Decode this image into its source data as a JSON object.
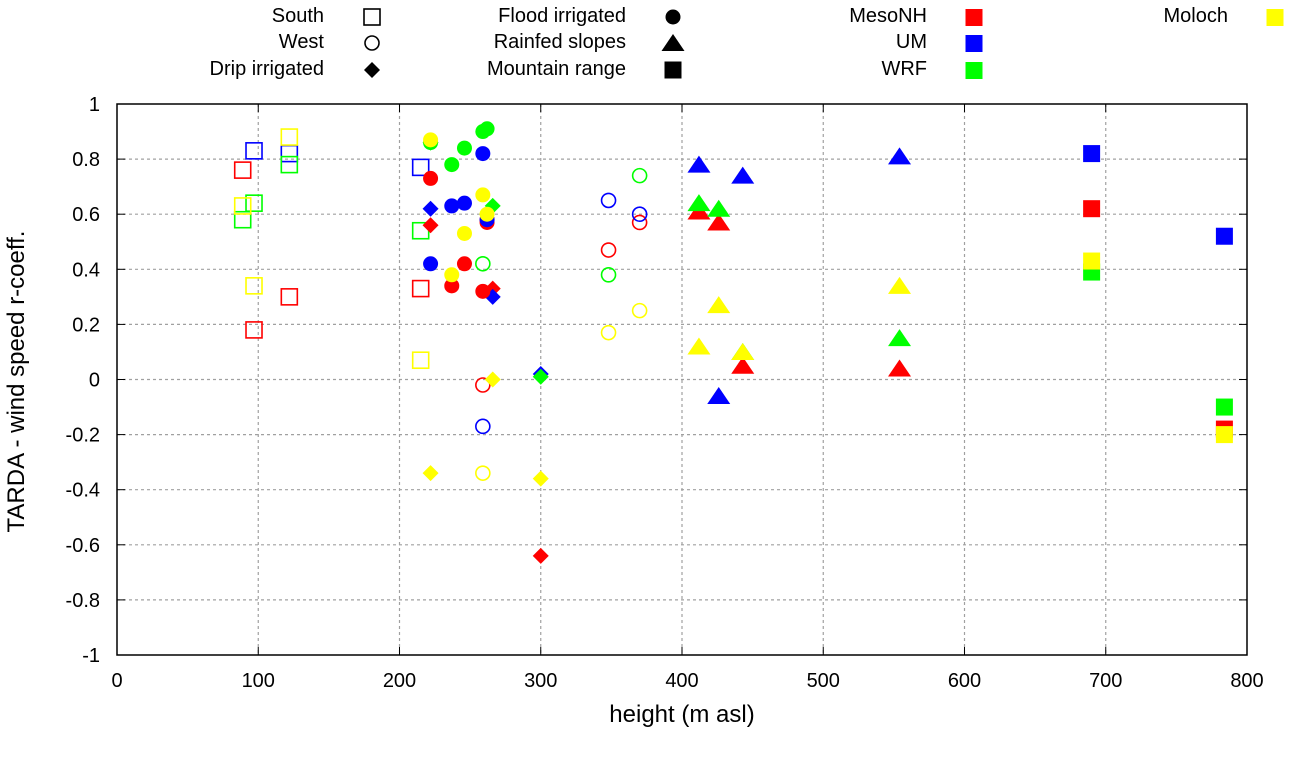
{
  "chart_data": {
    "type": "scatter",
    "title": "",
    "xlabel": "height (m asl)",
    "ylabel": "TARDA - wind speed r-coeff.",
    "xlim": [
      0,
      800
    ],
    "ylim": [
      -1,
      1
    ],
    "xticks": [
      "0",
      "100",
      "200",
      "300",
      "400",
      "500",
      "600",
      "700",
      "800"
    ],
    "yticks": [
      "1",
      "0.8",
      "0.6",
      "0.4",
      "0.2",
      "0",
      "-0.2",
      "-0.4",
      "-0.6",
      "-0.8",
      "-1"
    ],
    "grid": true,
    "legend": {
      "placement": "top",
      "regions": [
        {
          "name": "South",
          "marker": "open-square"
        },
        {
          "name": "West",
          "marker": "open-circle"
        },
        {
          "name": "Drip irrigated",
          "marker": "diamond"
        },
        {
          "name": "Flood irrigated",
          "marker": "circle"
        },
        {
          "name": "Rainfed slopes",
          "marker": "triangle"
        },
        {
          "name": "Mountain range",
          "marker": "square"
        }
      ],
      "models": [
        {
          "name": "MesoNH",
          "color": "#ff0000"
        },
        {
          "name": "UM",
          "color": "#0000ff"
        },
        {
          "name": "WRF",
          "color": "#00ff00"
        },
        {
          "name": "Moloch",
          "color": "#ffff00"
        }
      ]
    },
    "series": [
      {
        "name": "South-MesoNH",
        "region": "South",
        "model": "MesoNH",
        "points": [
          [
            89,
            0.76
          ],
          [
            97,
            0.18
          ],
          [
            122,
            0.3
          ],
          [
            215,
            0.33
          ]
        ]
      },
      {
        "name": "South-UM",
        "region": "South",
        "model": "UM",
        "points": [
          [
            97,
            0.83
          ],
          [
            122,
            0.82
          ],
          [
            215,
            0.77
          ]
        ]
      },
      {
        "name": "South-WRF",
        "region": "South",
        "model": "WRF",
        "points": [
          [
            89,
            0.58
          ],
          [
            97,
            0.64
          ],
          [
            122,
            0.78
          ],
          [
            215,
            0.54
          ]
        ]
      },
      {
        "name": "South-Moloch",
        "region": "South",
        "model": "Moloch",
        "points": [
          [
            89,
            0.63
          ],
          [
            97,
            0.34
          ],
          [
            122,
            0.88
          ],
          [
            215,
            0.07
          ]
        ]
      },
      {
        "name": "West-MesoNH",
        "region": "West",
        "model": "MesoNH",
        "points": [
          [
            259,
            -0.02
          ],
          [
            348,
            0.47
          ],
          [
            370,
            0.57
          ]
        ]
      },
      {
        "name": "West-UM",
        "region": "West",
        "model": "UM",
        "points": [
          [
            259,
            -0.17
          ],
          [
            348,
            0.65
          ],
          [
            370,
            0.6
          ]
        ]
      },
      {
        "name": "West-WRF",
        "region": "West",
        "model": "WRF",
        "points": [
          [
            259,
            0.42
          ],
          [
            348,
            0.38
          ],
          [
            370,
            0.74
          ]
        ]
      },
      {
        "name": "West-Moloch",
        "region": "West",
        "model": "Moloch",
        "points": [
          [
            259,
            -0.34
          ],
          [
            348,
            0.17
          ],
          [
            370,
            0.25
          ]
        ]
      },
      {
        "name": "Drip-MesoNH",
        "region": "Drip irrigated",
        "model": "MesoNH",
        "points": [
          [
            222,
            0.56
          ],
          [
            266,
            0.33
          ],
          [
            300,
            -0.64
          ]
        ]
      },
      {
        "name": "Drip-UM",
        "region": "Drip irrigated",
        "model": "UM",
        "points": [
          [
            222,
            0.62
          ],
          [
            266,
            0.3
          ],
          [
            300,
            0.02
          ]
        ]
      },
      {
        "name": "Drip-WRF",
        "region": "Drip irrigated",
        "model": "WRF",
        "points": [
          [
            222,
            0.86
          ],
          [
            266,
            0.63
          ],
          [
            300,
            0.01
          ]
        ]
      },
      {
        "name": "Drip-Moloch",
        "region": "Drip irrigated",
        "model": "Moloch",
        "points": [
          [
            222,
            -0.34
          ],
          [
            266,
            0.0
          ],
          [
            300,
            -0.36
          ]
        ]
      },
      {
        "name": "Flood-MesoNH",
        "region": "Flood irrigated",
        "model": "MesoNH",
        "points": [
          [
            222,
            0.73
          ],
          [
            237,
            0.34
          ],
          [
            246,
            0.42
          ],
          [
            259,
            0.32
          ],
          [
            262,
            0.57
          ],
          [
            262,
            0.58
          ]
        ]
      },
      {
        "name": "Flood-UM",
        "region": "Flood irrigated",
        "model": "UM",
        "points": [
          [
            222,
            0.42
          ],
          [
            237,
            0.63
          ],
          [
            246,
            0.64
          ],
          [
            259,
            0.82
          ],
          [
            262,
            0.58
          ]
        ]
      },
      {
        "name": "Flood-WRF",
        "region": "Flood irrigated",
        "model": "WRF",
        "points": [
          [
            222,
            0.86
          ],
          [
            237,
            0.78
          ],
          [
            246,
            0.84
          ],
          [
            259,
            0.9
          ],
          [
            262,
            0.91
          ]
        ]
      },
      {
        "name": "Flood-Moloch",
        "region": "Flood irrigated",
        "model": "Moloch",
        "points": [
          [
            222,
            0.87
          ],
          [
            237,
            0.38
          ],
          [
            246,
            0.53
          ],
          [
            259,
            0.67
          ],
          [
            262,
            0.6
          ]
        ]
      },
      {
        "name": "Rainfed-MesoNH",
        "region": "Rainfed slopes",
        "model": "MesoNH",
        "points": [
          [
            412,
            0.61
          ],
          [
            426,
            0.57
          ],
          [
            443,
            0.05
          ],
          [
            554,
            0.04
          ]
        ]
      },
      {
        "name": "Rainfed-UM",
        "region": "Rainfed slopes",
        "model": "UM",
        "points": [
          [
            412,
            0.78
          ],
          [
            426,
            -0.06
          ],
          [
            443,
            0.74
          ],
          [
            554,
            0.81
          ]
        ]
      },
      {
        "name": "Rainfed-WRF",
        "region": "Rainfed slopes",
        "model": "WRF",
        "points": [
          [
            412,
            0.64
          ],
          [
            426,
            0.62
          ],
          [
            443,
            0.1
          ],
          [
            554,
            0.15
          ]
        ]
      },
      {
        "name": "Rainfed-Moloch",
        "region": "Rainfed slopes",
        "model": "Moloch",
        "points": [
          [
            412,
            0.12
          ],
          [
            426,
            0.27
          ],
          [
            443,
            0.1
          ],
          [
            554,
            0.34
          ]
        ]
      },
      {
        "name": "Mountain-MesoNH",
        "region": "Mountain range",
        "model": "MesoNH",
        "points": [
          [
            690,
            0.62
          ],
          [
            784,
            -0.18
          ]
        ]
      },
      {
        "name": "Mountain-UM",
        "region": "Mountain range",
        "model": "UM",
        "points": [
          [
            690,
            0.82
          ],
          [
            784,
            0.52
          ]
        ]
      },
      {
        "name": "Mountain-WRF",
        "region": "Mountain range",
        "model": "WRF",
        "points": [
          [
            690,
            0.39
          ],
          [
            784,
            -0.1
          ]
        ]
      },
      {
        "name": "Mountain-Moloch",
        "region": "Mountain range",
        "model": "Moloch",
        "points": [
          [
            690,
            0.43
          ],
          [
            784,
            -0.2
          ]
        ]
      }
    ]
  }
}
